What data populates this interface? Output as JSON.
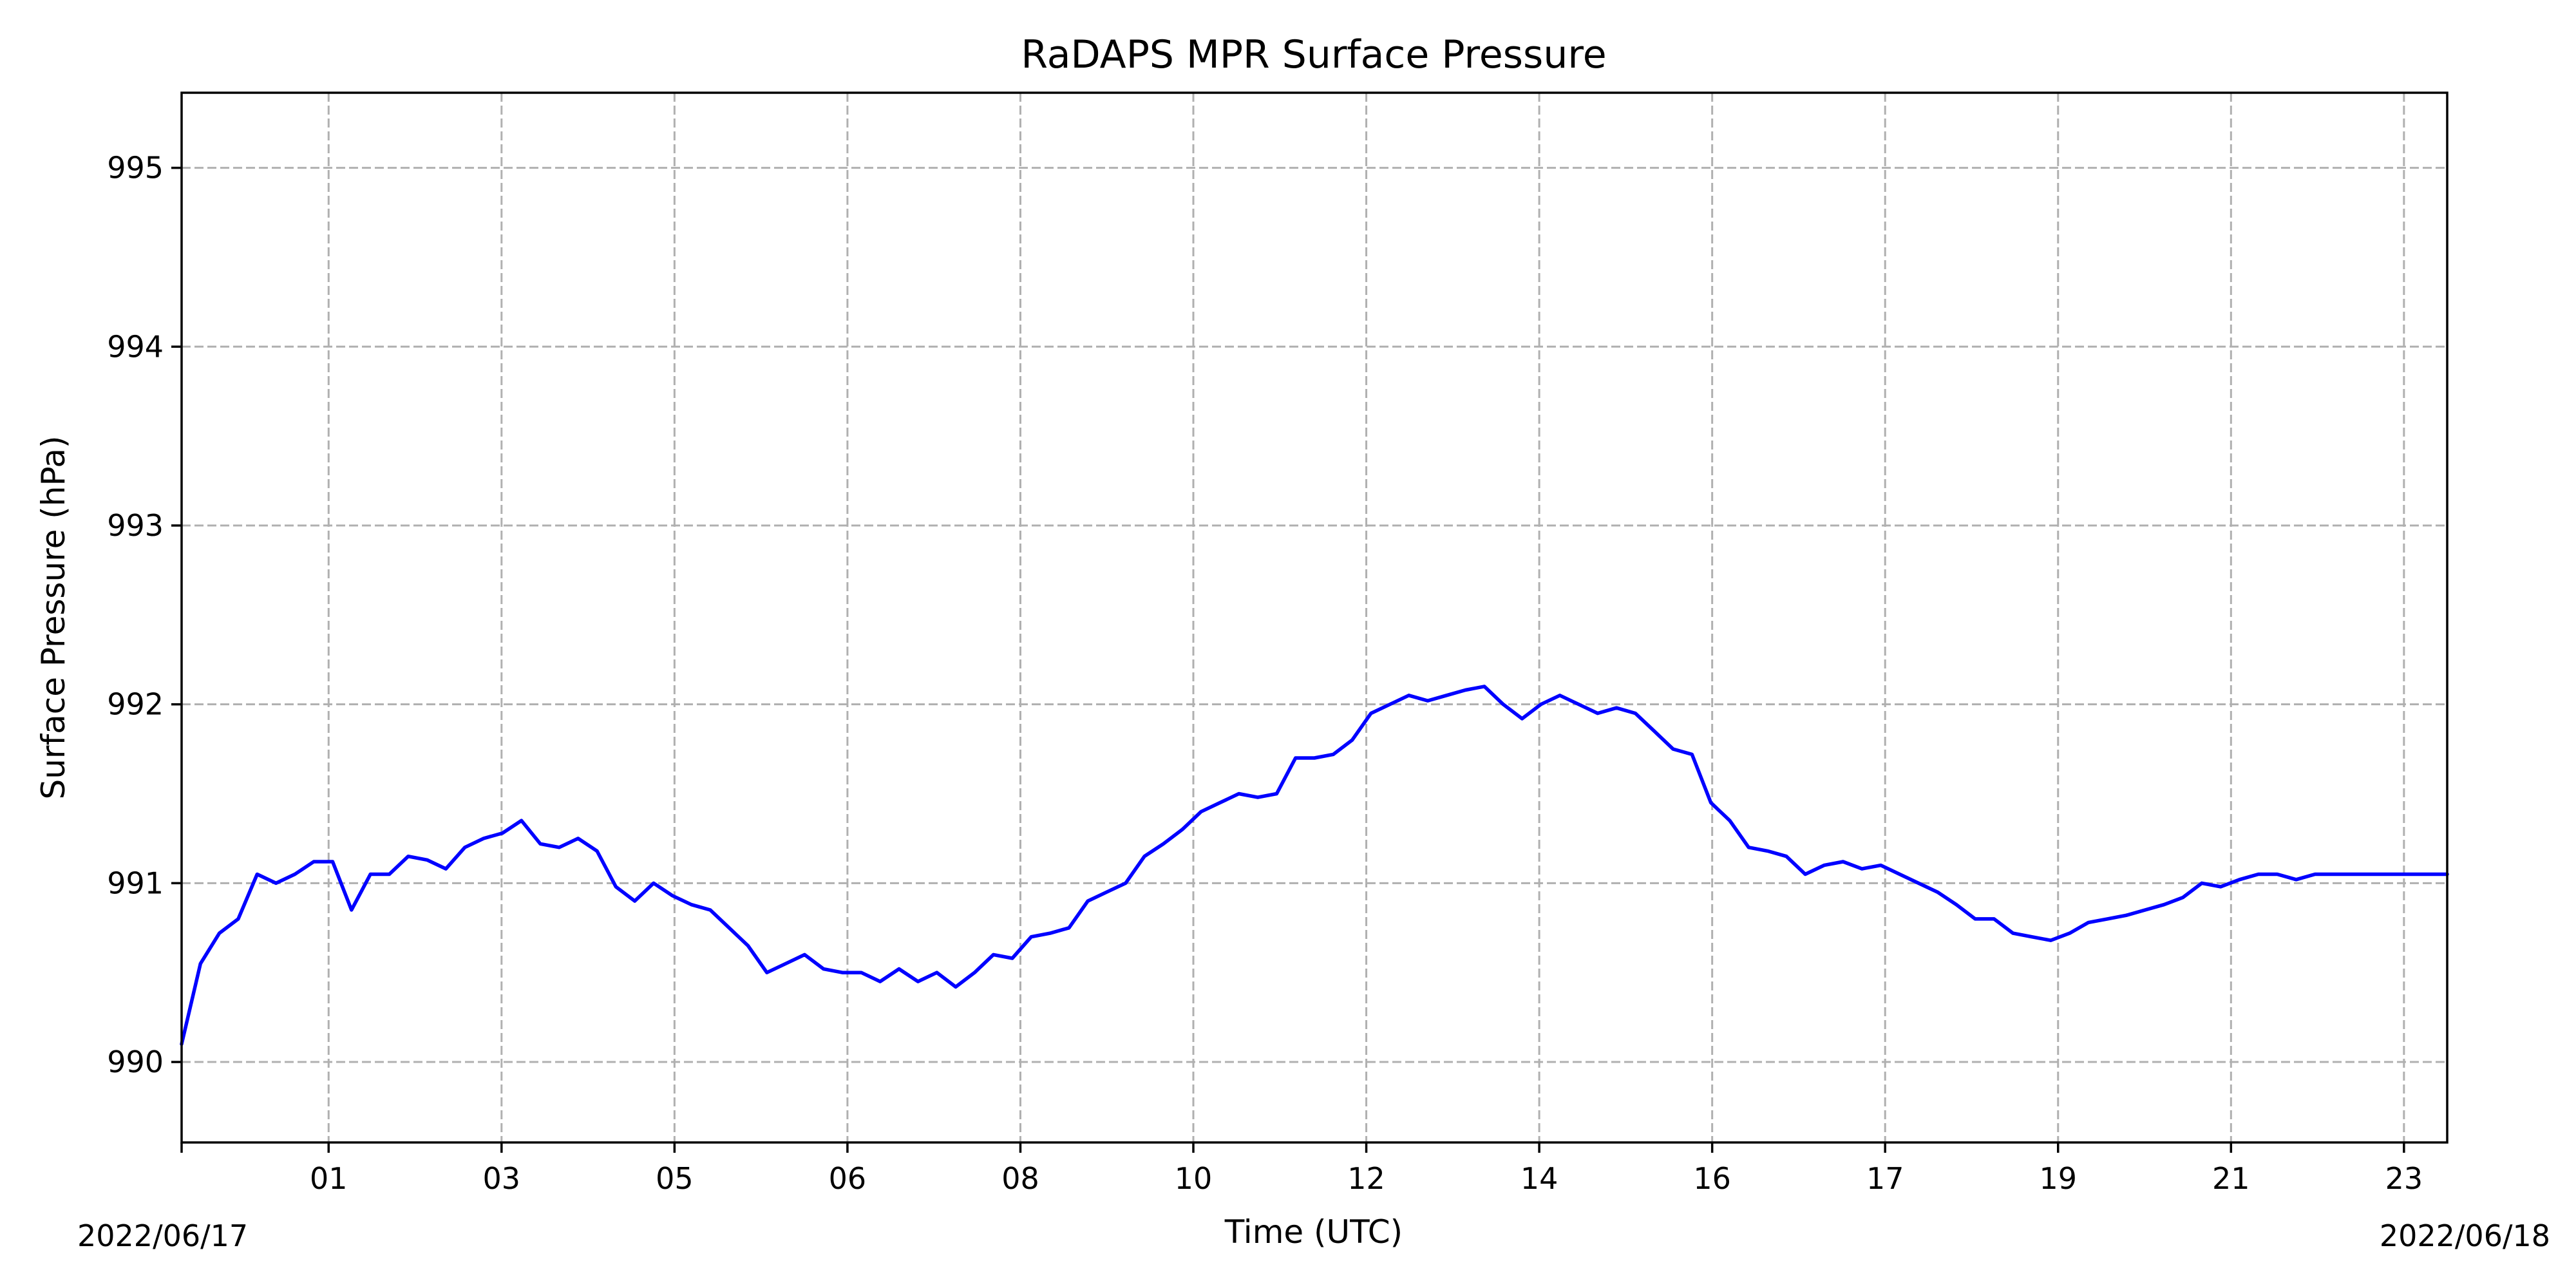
{
  "chart_data": {
    "type": "line",
    "title": "RaDAPS MPR Surface Pressure",
    "xlabel": "Time (UTC)",
    "ylabel": "Surface Pressure (hPa)",
    "x_unit": "hour (UTC)",
    "xlim": [
      0,
      24
    ],
    "ylim": [
      989.55,
      995.42
    ],
    "grid": true,
    "x_ticks": [
      {
        "value": 1.7,
        "label": "01"
      },
      {
        "value": 3.7,
        "label": "03"
      },
      {
        "value": 5.7,
        "label": "05"
      },
      {
        "value": 7.7,
        "label": "06"
      },
      {
        "value": 9.7,
        "label": "08"
      },
      {
        "value": 11.7,
        "label": "10"
      },
      {
        "value": 13.7,
        "label": "12"
      },
      {
        "value": 15.7,
        "label": "14"
      },
      {
        "value": 17.7,
        "label": "16"
      },
      {
        "value": 19.7,
        "label": "17"
      },
      {
        "value": 21.7,
        "label": "19"
      },
      {
        "value": 23.7,
        "label": "21"
      },
      {
        "value": 25.7,
        "label": "23"
      }
    ],
    "x_tick_scale": [
      0,
      26.2
    ],
    "date_labels": {
      "left": "2022/06/17",
      "right": "2022/06/18"
    },
    "y_ticks": [
      990,
      991,
      992,
      993,
      994,
      995
    ],
    "series": [
      {
        "color": "#0000ff",
        "x": [
          0.0,
          0.2,
          0.4,
          0.6,
          0.8,
          1.0,
          1.2,
          1.4,
          1.6,
          1.8,
          2.0,
          2.2,
          2.4,
          2.6,
          2.8,
          3.0,
          3.2,
          3.4,
          3.6,
          3.8,
          4.0,
          4.2,
          4.4,
          4.6,
          4.8,
          5.0,
          5.2,
          5.4,
          5.6,
          5.8,
          6.0,
          6.2,
          6.4,
          6.6,
          6.8,
          7.0,
          7.2,
          7.4,
          7.6,
          7.8,
          8.0,
          8.2,
          8.4,
          8.6,
          8.8,
          9.0,
          9.2,
          9.4,
          9.6,
          9.8,
          10.0,
          10.2,
          10.4,
          10.6,
          10.8,
          11.0,
          11.2,
          11.4,
          11.6,
          11.8,
          12.0,
          12.2,
          12.4,
          12.6,
          12.8,
          13.0,
          13.2,
          13.4,
          13.6,
          13.8,
          14.0,
          14.2,
          14.4,
          14.6,
          14.8,
          15.0,
          15.2,
          15.4,
          15.6,
          15.8,
          16.0,
          16.2,
          16.4,
          16.6,
          16.8,
          17.0,
          17.2,
          17.4,
          17.6,
          17.8,
          18.0,
          18.2,
          18.4,
          18.6,
          18.8,
          19.0,
          19.2,
          19.4,
          19.6,
          19.8,
          20.0,
          20.2,
          20.4,
          20.6,
          20.8,
          21.0,
          21.2,
          21.4,
          21.6,
          21.8,
          22.0,
          22.2,
          22.4,
          22.6,
          22.8,
          23.0,
          23.2,
          23.4,
          23.6,
          23.8,
          24.0
        ],
        "values": [
          990.1,
          990.55,
          990.72,
          990.8,
          991.05,
          991.0,
          991.05,
          991.12,
          991.12,
          990.85,
          991.05,
          991.05,
          991.15,
          991.13,
          991.08,
          991.2,
          991.25,
          991.28,
          991.35,
          991.22,
          991.2,
          991.25,
          991.18,
          990.98,
          990.9,
          991.0,
          990.93,
          990.88,
          990.85,
          990.75,
          990.65,
          990.5,
          990.55,
          990.6,
          990.52,
          990.5,
          990.5,
          990.45,
          990.52,
          990.45,
          990.5,
          990.42,
          990.5,
          990.6,
          990.58,
          990.7,
          990.72,
          990.75,
          990.9,
          990.95,
          991.0,
          991.15,
          991.22,
          991.3,
          991.4,
          991.45,
          991.5,
          991.48,
          991.5,
          991.7,
          991.7,
          991.72,
          991.8,
          991.95,
          992.0,
          992.05,
          992.02,
          992.05,
          992.08,
          992.1,
          992.0,
          991.92,
          992.0,
          992.05,
          992.0,
          991.95,
          991.98,
          991.95,
          991.85,
          991.75,
          991.72,
          991.45,
          991.35,
          991.2,
          991.18,
          991.15,
          991.05,
          991.1,
          991.12,
          991.08,
          991.1,
          991.05,
          991.0,
          990.95,
          990.88,
          990.8,
          990.8,
          990.72,
          990.7,
          990.68,
          990.72,
          990.78,
          990.8,
          990.82,
          990.85,
          990.88,
          990.92,
          991.0,
          990.98,
          991.02,
          991.05,
          991.05,
          991.02,
          991.05,
          991.05,
          991.05,
          991.05,
          991.05,
          991.05,
          991.05,
          991.05
        ]
      }
    ]
  }
}
